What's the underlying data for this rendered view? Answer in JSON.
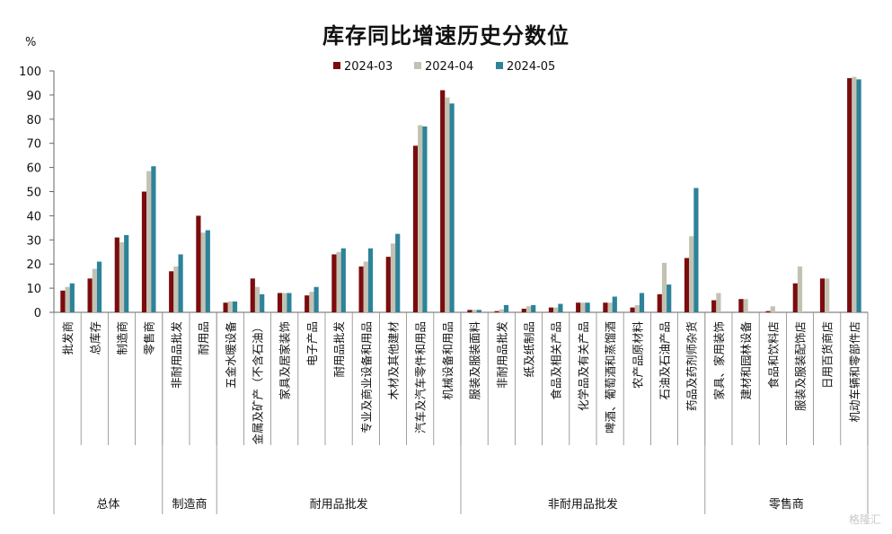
{
  "chart_data": {
    "type": "bar",
    "title": "库存同比增速历史分数位",
    "unit": "%",
    "ylim": [
      0,
      100
    ],
    "yticks": [
      0,
      10,
      20,
      30,
      40,
      50,
      60,
      70,
      80,
      90,
      100
    ],
    "legend_position": "top-center",
    "categories": [
      "批发商",
      "总库存",
      "制造商",
      "零售商",
      "非耐用品批发",
      "耐用品",
      "五金水暖设备",
      "金属及矿产（不含石油）",
      "家具及居家装饰",
      "电子产品",
      "耐用品批发",
      "专业及商业设备和用品",
      "木材及其他建材",
      "汽车及汽车零件和用品",
      "机械设备和用品",
      "服装及服装面料",
      "非耐用品批发",
      "纸及纸制品",
      "食品及相关产品",
      "化学品及有关产品",
      "啤酒、葡萄酒和蒸馏酒",
      "农产品原材料",
      "石油及石油产品",
      "药品及药剂师杂货",
      "家具、家用装饰",
      "建材和园林设备",
      "食品和饮料店",
      "服装及服装配饰店",
      "日用百货商店",
      "机动车辆和零部件店"
    ],
    "series": [
      {
        "name": "2024-03",
        "color": "#7b0c0e",
        "values": [
          9,
          14,
          31,
          50,
          17,
          40,
          4,
          14,
          8,
          7,
          24,
          19,
          23,
          69,
          92,
          1,
          0.5,
          1.5,
          2,
          4,
          4,
          2,
          7.5,
          22.5,
          5,
          5.5,
          0.5,
          12,
          14,
          97
        ]
      },
      {
        "name": "2024-04",
        "color": "#c3c2b2",
        "values": [
          10.5,
          18,
          29,
          58.5,
          19,
          33,
          4.5,
          10.5,
          8,
          8.5,
          25,
          21,
          28.5,
          77.5,
          89,
          1,
          1.2,
          2.5,
          2,
          4,
          4,
          3,
          20.5,
          31.5,
          8,
          5.5,
          2.5,
          19,
          14,
          97.5
        ]
      },
      {
        "name": "2024-05",
        "color": "#2d8399",
        "values": [
          12,
          21,
          32,
          60.5,
          24,
          34,
          4.5,
          7.5,
          8,
          10.5,
          26.5,
          26.5,
          32.5,
          77,
          86.5,
          1,
          3,
          3,
          3.5,
          4,
          6.5,
          8,
          11.5,
          51.5,
          null,
          null,
          null,
          null,
          null,
          96.5
        ]
      }
    ],
    "groups": [
      {
        "name": "总体",
        "count": 4
      },
      {
        "name": "制造商",
        "count": 2
      },
      {
        "name": "耐用品批发",
        "count": 9
      },
      {
        "name": "非耐用品批发",
        "count": 9
      },
      {
        "name": "零售商",
        "count": 6
      }
    ]
  },
  "watermark": "格隆汇"
}
